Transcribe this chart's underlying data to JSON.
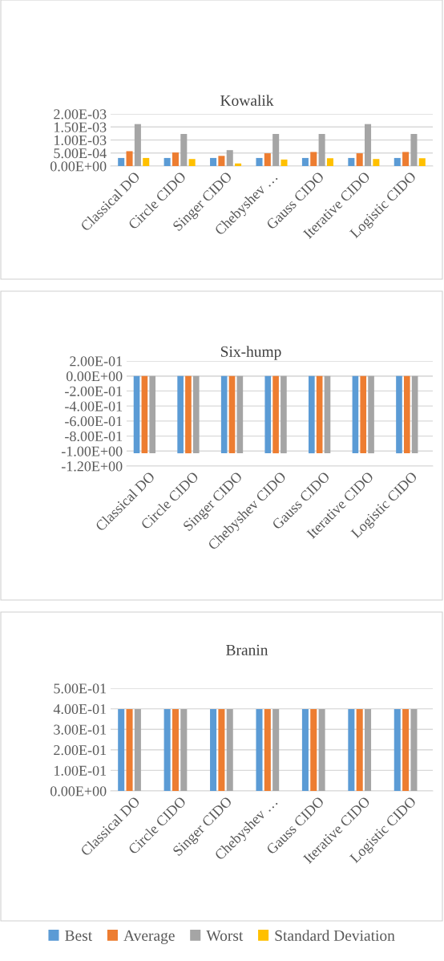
{
  "chart_data": [
    {
      "type": "bar",
      "title": "Kowalik",
      "categories": [
        "Classical DO",
        "Circle CIDO",
        "Singer CIDO",
        "Chebyshev …",
        "Gauss CIDO",
        "Iterative CIDO",
        "Logistic CIDO"
      ],
      "series": [
        {
          "name": "Best",
          "color": "#5b9bd5",
          "values": [
            0.00031,
            0.00031,
            0.00031,
            0.00031,
            0.00031,
            0.00031,
            0.00031
          ]
        },
        {
          "name": "Average",
          "color": "#ed7d31",
          "values": [
            0.00057,
            0.00052,
            0.00039,
            0.00049,
            0.00054,
            0.00049,
            0.00054
          ]
        },
        {
          "name": "Worst",
          "color": "#a5a5a5",
          "values": [
            0.00161,
            0.00123,
            0.00061,
            0.00123,
            0.00123,
            0.00161,
            0.00123
          ]
        },
        {
          "name": "Standard Deviation",
          "color": "#ffc000",
          "values": [
            0.00031,
            0.00027,
            0.0001,
            0.00025,
            0.0003,
            0.00027,
            0.0003
          ]
        }
      ],
      "ylim": [
        0,
        0.002
      ],
      "yticks": [
        {
          "value": 0,
          "label": "0.00E+00"
        },
        {
          "value": 0.0005,
          "label": "5.00E-04"
        },
        {
          "value": 0.001,
          "label": "1.00E-03"
        },
        {
          "value": 0.0015,
          "label": "1.50E-03"
        },
        {
          "value": 0.002,
          "label": "2.00E-03"
        }
      ],
      "grid": "y",
      "legend": "bottom"
    },
    {
      "type": "bar",
      "title": "Six-hump",
      "categories": [
        "Classical DO",
        "Circle CIDO",
        "Singer CIDO",
        "Chebyshev CIDO",
        "Gauss CIDO",
        "Iterative CIDO",
        "Logistic CIDO"
      ],
      "series": [
        {
          "color": "#5b9bd5",
          "values": [
            -1.03,
            -1.03,
            -1.03,
            -1.03,
            -1.03,
            -1.03,
            -1.03
          ]
        },
        {
          "color": "#ed7d31",
          "values": [
            -1.03,
            -1.03,
            -1.03,
            -1.03,
            -1.03,
            -1.03,
            -1.03
          ]
        },
        {
          "color": "#a5a5a5",
          "values": [
            -1.03,
            -1.03,
            -1.03,
            -1.03,
            -1.03,
            -1.03,
            -1.03
          ]
        },
        {
          "color": "#ffc000",
          "values": [
            0,
            0,
            0,
            0,
            0,
            0,
            0
          ]
        }
      ],
      "ylim": [
        -1.2,
        0.2
      ],
      "yticks": [
        {
          "value": -1.2,
          "label": "-1.20E+00"
        },
        {
          "value": -1.0,
          "label": "-1.00E+00"
        },
        {
          "value": -0.8,
          "label": "-8.00E-01"
        },
        {
          "value": -0.6,
          "label": "-6.00E-01"
        },
        {
          "value": -0.4,
          "label": "-4.00E-01"
        },
        {
          "value": -0.2,
          "label": "-2.00E-01"
        },
        {
          "value": 0,
          "label": "0.00E+00"
        },
        {
          "value": 0.2,
          "label": "2.00E-01"
        }
      ],
      "grid": "y"
    },
    {
      "type": "bar",
      "title": "Branin",
      "categories": [
        "Classical DO",
        "Circle CIDO",
        "Singer CIDO",
        "Chebyshev …",
        "Gauss CIDO",
        "Iterative CIDO",
        "Logistic CIDO"
      ],
      "series": [
        {
          "color": "#5b9bd5",
          "values": [
            0.398,
            0.398,
            0.398,
            0.398,
            0.398,
            0.398,
            0.398
          ]
        },
        {
          "color": "#ed7d31",
          "values": [
            0.398,
            0.398,
            0.398,
            0.398,
            0.398,
            0.398,
            0.398
          ]
        },
        {
          "color": "#a5a5a5",
          "values": [
            0.398,
            0.398,
            0.398,
            0.398,
            0.398,
            0.398,
            0.398
          ]
        },
        {
          "color": "#ffc000",
          "values": [
            0,
            0,
            0,
            0,
            0,
            0,
            0
          ]
        }
      ],
      "ylim": [
        0,
        0.5
      ],
      "yticks": [
        {
          "value": 0,
          "label": "0.00E+00"
        },
        {
          "value": 0.1,
          "label": "1.00E-01"
        },
        {
          "value": 0.2,
          "label": "2.00E-01"
        },
        {
          "value": 0.3,
          "label": "3.00E-01"
        },
        {
          "value": 0.4,
          "label": "4.00E-01"
        },
        {
          "value": 0.5,
          "label": "5.00E-01"
        }
      ],
      "grid": "y"
    }
  ]
}
